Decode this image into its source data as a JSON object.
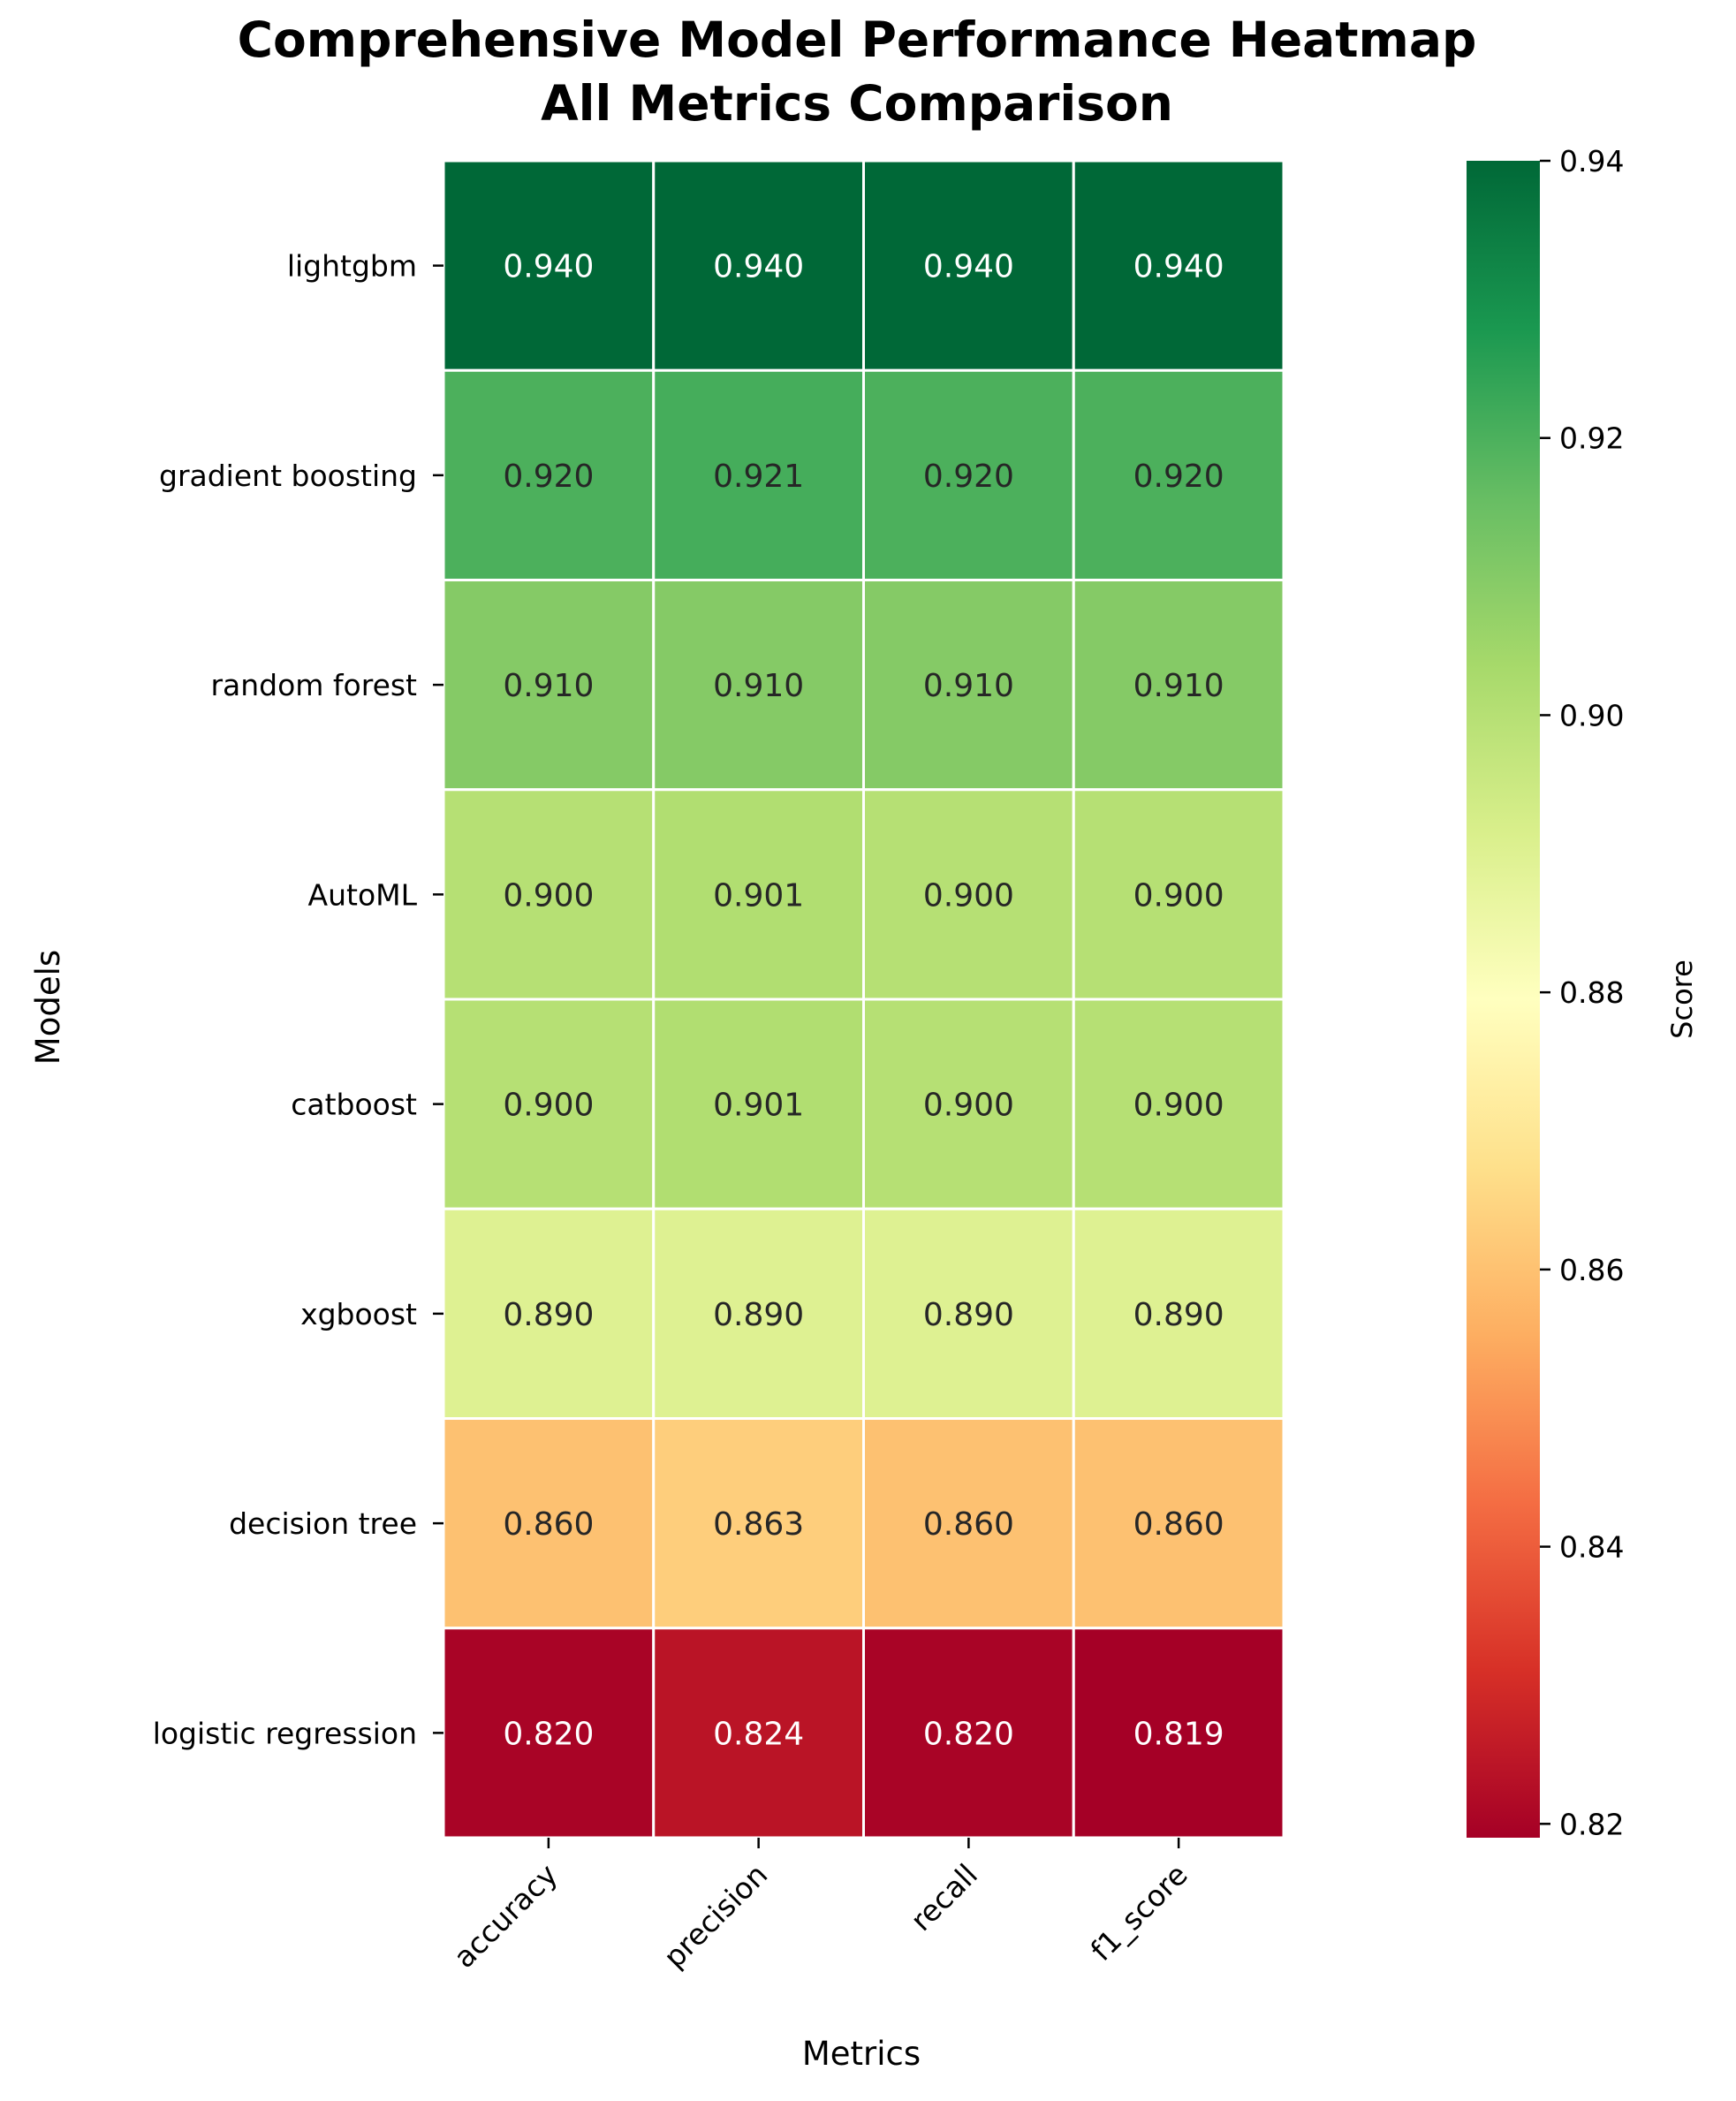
{
  "chart_data": {
    "type": "heatmap",
    "title": "Comprehensive Model Performance Heatmap\nAll Metrics Comparison",
    "xlabel": "Metrics",
    "ylabel": "Models",
    "colorbar_label": "Score",
    "x": [
      "accuracy",
      "precision",
      "recall",
      "f1_score"
    ],
    "y": [
      "lightgbm",
      "gradient boosting",
      "random forest",
      "AutoML",
      "catboost",
      "xgboost",
      "decision tree",
      "logistic regression"
    ],
    "values": [
      [
        0.94,
        0.94,
        0.94,
        0.94
      ],
      [
        0.92,
        0.921,
        0.92,
        0.92
      ],
      [
        0.91,
        0.91,
        0.91,
        0.91
      ],
      [
        0.9,
        0.901,
        0.9,
        0.9
      ],
      [
        0.9,
        0.901,
        0.9,
        0.9
      ],
      [
        0.89,
        0.89,
        0.89,
        0.89
      ],
      [
        0.86,
        0.863,
        0.86,
        0.86
      ],
      [
        0.82,
        0.824,
        0.82,
        0.819
      ]
    ],
    "value_format": "0.000",
    "colormap": "RdYlGn",
    "vmin": 0.819,
    "vmax": 0.94,
    "colorbar_ticks": [
      0.82,
      0.84,
      0.86,
      0.88,
      0.9,
      0.92,
      0.94
    ],
    "colorbar_tick_labels": [
      "0.82",
      "0.84",
      "0.86",
      "0.88",
      "0.90",
      "0.92",
      "0.94"
    ],
    "grid": false,
    "cell_border_color": "#ffffff"
  }
}
